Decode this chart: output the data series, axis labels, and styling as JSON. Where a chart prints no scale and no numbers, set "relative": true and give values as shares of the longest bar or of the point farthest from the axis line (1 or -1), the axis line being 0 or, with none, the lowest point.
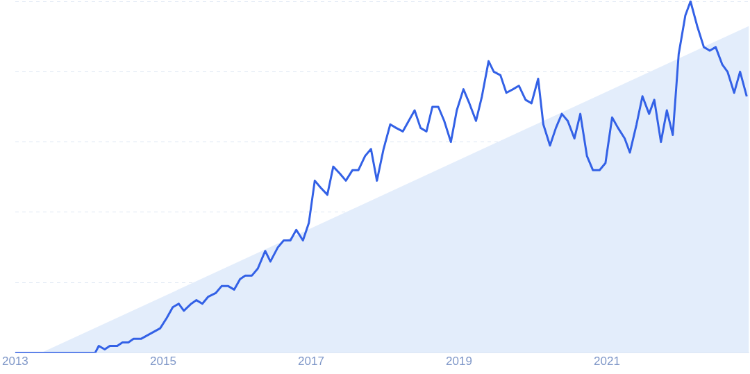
{
  "chart_data": {
    "type": "line",
    "relative": true,
    "grid": "y",
    "legend": false,
    "marker": "none",
    "line_style": "solid",
    "xlim": [
      2013,
      2022.92
    ],
    "xticks": [
      2013,
      2015,
      2017,
      2019,
      2021
    ],
    "series": [
      {
        "type": "area",
        "color": "#e3edfb",
        "x": [
          2013.35,
          2022.92
        ],
        "values": [
          0,
          0.93
        ]
      },
      {
        "color": "#3361e6",
        "x": [
          2013.0,
          2014.08,
          2014.13,
          2014.21,
          2014.28,
          2014.38,
          2014.45,
          2014.53,
          2014.6,
          2014.7,
          2014.96,
          2015.05,
          2015.13,
          2015.21,
          2015.28,
          2015.38,
          2015.45,
          2015.53,
          2015.61,
          2015.71,
          2015.79,
          2015.88,
          2015.96,
          2016.04,
          2016.11,
          2016.2,
          2016.28,
          2016.38,
          2016.45,
          2016.55,
          2016.63,
          2016.72,
          2016.8,
          2016.89,
          2016.97,
          2017.05,
          2017.13,
          2017.22,
          2017.3,
          2017.39,
          2017.47,
          2017.56,
          2017.64,
          2017.73,
          2017.81,
          2017.89,
          2017.98,
          2018.07,
          2018.15,
          2018.24,
          2018.32,
          2018.4,
          2018.48,
          2018.56,
          2018.64,
          2018.72,
          2018.8,
          2018.89,
          2018.97,
          2019.06,
          2019.14,
          2019.23,
          2019.31,
          2019.4,
          2019.47,
          2019.56,
          2019.64,
          2019.73,
          2019.81,
          2019.9,
          2019.98,
          2020.07,
          2020.14,
          2020.23,
          2020.31,
          2020.39,
          2020.47,
          2020.56,
          2020.64,
          2020.73,
          2020.81,
          2020.9,
          2020.98,
          2021.07,
          2021.15,
          2021.24,
          2021.31,
          2021.4,
          2021.48,
          2021.57,
          2021.64,
          2021.73,
          2021.81,
          2021.89,
          2021.97,
          2022.06,
          2022.13,
          2022.22,
          2022.31,
          2022.39,
          2022.47,
          2022.56,
          2022.63,
          2022.72,
          2022.8,
          2022.89
        ],
        "values": [
          0,
          0,
          0.02,
          0.01,
          0.02,
          0.02,
          0.03,
          0.03,
          0.04,
          0.04,
          0.07,
          0.1,
          0.13,
          0.14,
          0.12,
          0.14,
          0.15,
          0.14,
          0.16,
          0.17,
          0.19,
          0.19,
          0.18,
          0.21,
          0.22,
          0.22,
          0.24,
          0.29,
          0.26,
          0.3,
          0.32,
          0.32,
          0.35,
          0.32,
          0.37,
          0.49,
          0.47,
          0.45,
          0.53,
          0.51,
          0.49,
          0.52,
          0.52,
          0.56,
          0.58,
          0.49,
          0.58,
          0.65,
          0.64,
          0.63,
          0.66,
          0.69,
          0.64,
          0.63,
          0.7,
          0.7,
          0.66,
          0.6,
          0.69,
          0.75,
          0.71,
          0.66,
          0.73,
          0.83,
          0.8,
          0.79,
          0.74,
          0.75,
          0.76,
          0.72,
          0.71,
          0.78,
          0.65,
          0.59,
          0.64,
          0.68,
          0.66,
          0.61,
          0.68,
          0.56,
          0.52,
          0.52,
          0.54,
          0.67,
          0.64,
          0.61,
          0.57,
          0.65,
          0.73,
          0.68,
          0.72,
          0.6,
          0.69,
          0.62,
          0.85,
          0.96,
          1.0,
          0.93,
          0.87,
          0.86,
          0.87,
          0.82,
          0.8,
          0.74,
          0.8,
          0.73
        ]
      }
    ]
  }
}
